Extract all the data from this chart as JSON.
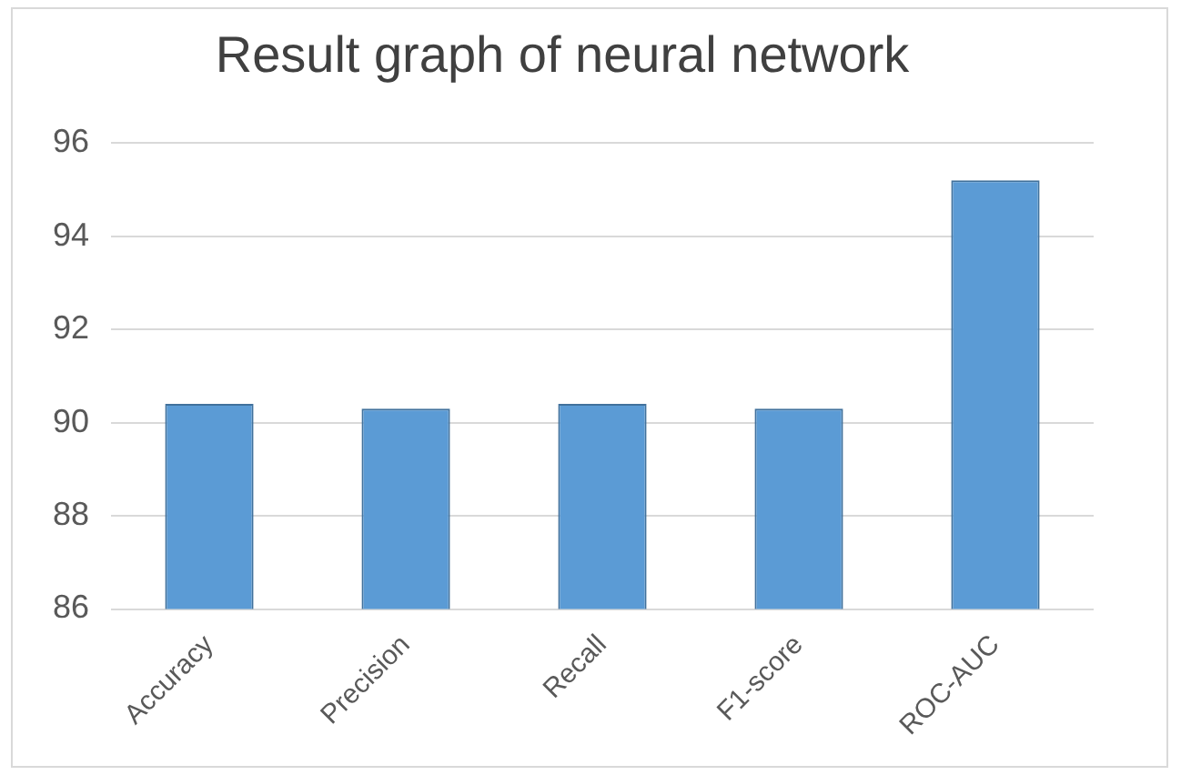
{
  "chart_data": {
    "type": "bar",
    "title": "Result graph of neural network",
    "categories": [
      "Accuracy",
      "Precision",
      "Recall",
      "F1-score",
      "ROC-AUC"
    ],
    "values": [
      90.4,
      90.3,
      90.4,
      90.3,
      95.2
    ],
    "color": "#5b9bd5",
    "ylim": [
      86,
      96
    ],
    "yticks": [
      86,
      88,
      90,
      92,
      94,
      96
    ],
    "grid": "y"
  }
}
